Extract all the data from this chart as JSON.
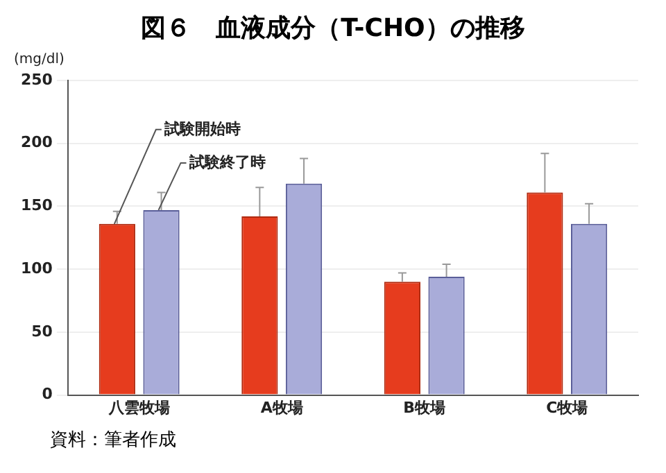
{
  "chart_data": {
    "type": "bar",
    "title": "図６　血液成分（T-CHO）の推移",
    "ylabel": "(mg/dl)",
    "categories": [
      "八雲牧場",
      "A牧場",
      "B牧場",
      "C牧場"
    ],
    "series": [
      {
        "name": "試験開始時",
        "color": "#e63c1e",
        "values": [
          136,
          142,
          90,
          161
        ],
        "errors": [
          [
            136,
            146
          ],
          [
            142,
            165
          ],
          [
            90,
            97
          ],
          [
            161,
            192
          ]
        ]
      },
      {
        "name": "試験終了時",
        "color": "#a9acd9",
        "values": [
          147,
          168,
          94,
          136
        ],
        "errors": [
          [
            147,
            161
          ],
          [
            168,
            188
          ],
          [
            94,
            104
          ],
          [
            136,
            152
          ]
        ]
      }
    ],
    "ylim": [
      0,
      250
    ],
    "yticks": [
      0,
      50,
      100,
      150,
      200,
      250
    ],
    "grid": "y",
    "legend": false,
    "annotations": [
      "資料：筆者作成"
    ]
  }
}
